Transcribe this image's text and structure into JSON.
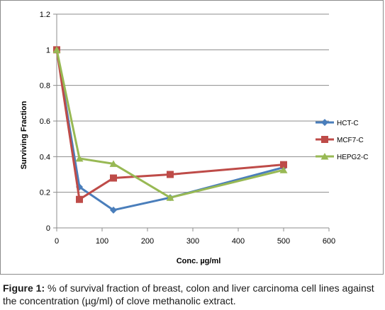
{
  "chart_data": {
    "type": "line",
    "xlabel": "Conc. µg/ml",
    "ylabel": "Surviving  Fraction",
    "xlim": [
      0,
      600
    ],
    "ylim": [
      0,
      1.2
    ],
    "x_ticks": [
      "0",
      "100",
      "200",
      "300",
      "400",
      "500",
      "600"
    ],
    "y_ticks": [
      "0",
      "0.2",
      "0.4",
      "0.6",
      "0.8",
      "1",
      "1.2"
    ],
    "grid": "horizontal",
    "legend_position": "right",
    "series": [
      {
        "name": "HCT-C",
        "color": "#4a7ebb",
        "marker": "diamond",
        "x": [
          0,
          50,
          125,
          250,
          500
        ],
        "y": [
          1.0,
          0.23,
          0.1,
          0.17,
          0.34
        ]
      },
      {
        "name": "MCF7-C",
        "color": "#be4b48",
        "marker": "square",
        "x": [
          0,
          50,
          125,
          250,
          500
        ],
        "y": [
          1.0,
          0.16,
          0.28,
          0.3,
          0.355
        ]
      },
      {
        "name": "HEPG2-C",
        "color": "#98b954",
        "marker": "triangle",
        "x": [
          0,
          50,
          125,
          250,
          500
        ],
        "y": [
          1.0,
          0.39,
          0.36,
          0.17,
          0.325
        ]
      }
    ]
  },
  "caption": {
    "label": "Figure 1:",
    "text": " % of survival fraction of breast, colon and liver carcinoma cell lines against the concentration (µg/ml) of clove methanolic extract."
  }
}
